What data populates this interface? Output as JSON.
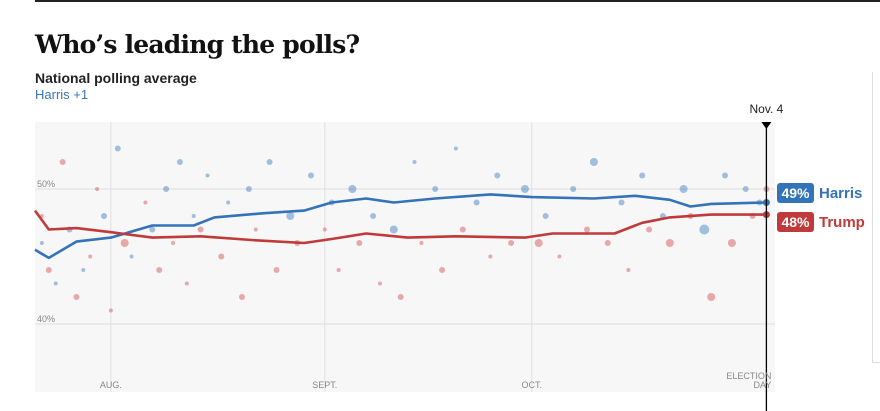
{
  "header": {
    "title": "Who’s leading the polls?",
    "subtitle": "National polling average",
    "lead": "Harris +1"
  },
  "chart_data": {
    "type": "line",
    "title": "National polling average",
    "x_range": [
      "07-21",
      "11-04"
    ],
    "ylim": [
      37,
      54
    ],
    "y_ticks": [
      {
        "value": 50,
        "label": "50%"
      },
      {
        "value": 40,
        "label": "40%"
      }
    ],
    "x_ticks": [
      {
        "date": "08-01",
        "label": "AUG."
      },
      {
        "date": "09-01",
        "label": "SEPT."
      },
      {
        "date": "10-01",
        "label": "OCT."
      },
      {
        "date": "11-04",
        "label": "ELECTION DAY"
      }
    ],
    "marker": {
      "date": "11-04",
      "label": "Nov. 4"
    },
    "grid": true,
    "series": [
      {
        "name": "Harris",
        "color": "#3373b9",
        "final_label": "49%",
        "points": [
          [
            "07-21",
            45.5
          ],
          [
            "07-23",
            44.9
          ],
          [
            "07-27",
            46.1
          ],
          [
            "08-01",
            46.4
          ],
          [
            "08-07",
            47.3
          ],
          [
            "08-13",
            47.3
          ],
          [
            "08-16",
            47.9
          ],
          [
            "08-23",
            48.2
          ],
          [
            "08-29",
            48.4
          ],
          [
            "09-02",
            49.0
          ],
          [
            "09-07",
            49.3
          ],
          [
            "09-11",
            49.0
          ],
          [
            "09-17",
            49.3
          ],
          [
            "09-25",
            49.6
          ],
          [
            "10-01",
            49.4
          ],
          [
            "10-10",
            49.3
          ],
          [
            "10-16",
            49.5
          ],
          [
            "10-21",
            49.2
          ],
          [
            "10-24",
            48.7
          ],
          [
            "10-27",
            48.9
          ],
          [
            "11-04",
            49.0
          ]
        ]
      },
      {
        "name": "Trump",
        "color": "#c0393b",
        "final_label": "48%",
        "points": [
          [
            "07-21",
            48.4
          ],
          [
            "07-23",
            47.0
          ],
          [
            "07-27",
            47.1
          ],
          [
            "08-01",
            46.8
          ],
          [
            "08-07",
            46.4
          ],
          [
            "08-14",
            46.5
          ],
          [
            "08-22",
            46.2
          ],
          [
            "08-29",
            46.0
          ],
          [
            "09-02",
            46.3
          ],
          [
            "09-07",
            46.7
          ],
          [
            "09-13",
            46.4
          ],
          [
            "09-20",
            46.5
          ],
          [
            "09-30",
            46.4
          ],
          [
            "10-04",
            46.7
          ],
          [
            "10-13",
            46.7
          ],
          [
            "10-17",
            47.5
          ],
          [
            "10-21",
            47.9
          ],
          [
            "10-27",
            48.1
          ],
          [
            "11-04",
            48.1
          ]
        ]
      }
    ],
    "polls": [
      [
        "07-22",
        "T",
        48,
        2
      ],
      [
        "07-22",
        "H",
        46,
        2
      ],
      [
        "07-23",
        "T",
        44,
        3
      ],
      [
        "07-24",
        "H",
        43,
        2
      ],
      [
        "07-25",
        "T",
        52,
        3
      ],
      [
        "07-26",
        "H",
        47,
        3
      ],
      [
        "07-27",
        "T",
        42,
        3
      ],
      [
        "07-28",
        "H",
        44,
        2
      ],
      [
        "07-29",
        "T",
        45,
        2
      ],
      [
        "07-30",
        "T",
        50,
        2
      ],
      [
        "07-31",
        "H",
        48,
        3
      ],
      [
        "08-01",
        "T",
        41,
        2
      ],
      [
        "08-02",
        "H",
        53,
        3
      ],
      [
        "08-03",
        "T",
        46,
        4
      ],
      [
        "08-04",
        "H",
        45,
        2
      ],
      [
        "08-06",
        "T",
        49,
        2
      ],
      [
        "08-07",
        "H",
        47,
        3
      ],
      [
        "08-08",
        "T",
        44,
        3
      ],
      [
        "08-09",
        "H",
        50,
        3
      ],
      [
        "08-10",
        "T",
        46,
        2
      ],
      [
        "08-11",
        "H",
        52,
        3
      ],
      [
        "08-12",
        "T",
        43,
        2
      ],
      [
        "08-13",
        "H",
        48,
        2
      ],
      [
        "08-14",
        "T",
        47,
        3
      ],
      [
        "08-15",
        "H",
        51,
        2
      ],
      [
        "08-17",
        "T",
        45,
        3
      ],
      [
        "08-18",
        "H",
        49,
        2
      ],
      [
        "08-20",
        "T",
        42,
        3
      ],
      [
        "08-21",
        "H",
        50,
        3
      ],
      [
        "08-22",
        "T",
        47,
        2
      ],
      [
        "08-24",
        "H",
        52,
        3
      ],
      [
        "08-25",
        "T",
        44,
        3
      ],
      [
        "08-27",
        "H",
        48,
        4
      ],
      [
        "08-28",
        "T",
        46,
        3
      ],
      [
        "08-30",
        "H",
        51,
        3
      ],
      [
        "09-01",
        "T",
        47,
        2
      ],
      [
        "09-02",
        "H",
        49,
        3
      ],
      [
        "09-03",
        "T",
        44,
        2
      ],
      [
        "09-05",
        "H",
        50,
        4
      ],
      [
        "09-06",
        "T",
        46,
        3
      ],
      [
        "09-08",
        "H",
        48,
        3
      ],
      [
        "09-09",
        "T",
        43,
        2
      ],
      [
        "09-11",
        "H",
        47,
        4
      ],
      [
        "09-12",
        "T",
        42,
        3
      ],
      [
        "09-14",
        "H",
        52,
        2
      ],
      [
        "09-15",
        "T",
        46,
        2
      ],
      [
        "09-17",
        "H",
        50,
        3
      ],
      [
        "09-18",
        "T",
        44,
        3
      ],
      [
        "09-20",
        "H",
        53,
        2
      ],
      [
        "09-21",
        "T",
        47,
        3
      ],
      [
        "09-23",
        "H",
        49,
        3
      ],
      [
        "09-25",
        "T",
        45,
        2
      ],
      [
        "09-26",
        "H",
        51,
        3
      ],
      [
        "09-28",
        "T",
        46,
        3
      ],
      [
        "09-30",
        "H",
        50,
        4
      ],
      [
        "10-02",
        "T",
        46,
        4
      ],
      [
        "10-03",
        "H",
        48,
        3
      ],
      [
        "10-05",
        "T",
        45,
        2
      ],
      [
        "10-07",
        "H",
        50,
        3
      ],
      [
        "10-09",
        "T",
        47,
        3
      ],
      [
        "10-10",
        "H",
        52,
        4
      ],
      [
        "10-12",
        "T",
        46,
        3
      ],
      [
        "10-14",
        "H",
        49,
        3
      ],
      [
        "10-15",
        "T",
        44,
        2
      ],
      [
        "10-17",
        "H",
        51,
        3
      ],
      [
        "10-18",
        "T",
        47,
        3
      ],
      [
        "10-20",
        "H",
        48,
        3
      ],
      [
        "10-21",
        "T",
        46,
        4
      ],
      [
        "10-23",
        "H",
        50,
        4
      ],
      [
        "10-24",
        "T",
        48,
        3
      ],
      [
        "10-26",
        "H",
        47,
        5
      ],
      [
        "10-27",
        "T",
        42,
        4
      ],
      [
        "10-29",
        "H",
        51,
        3
      ],
      [
        "10-30",
        "T",
        46,
        4
      ],
      [
        "11-01",
        "H",
        50,
        3
      ],
      [
        "11-02",
        "T",
        48,
        3
      ],
      [
        "11-03",
        "H",
        49,
        3
      ],
      [
        "11-04",
        "T",
        50,
        3
      ]
    ]
  }
}
